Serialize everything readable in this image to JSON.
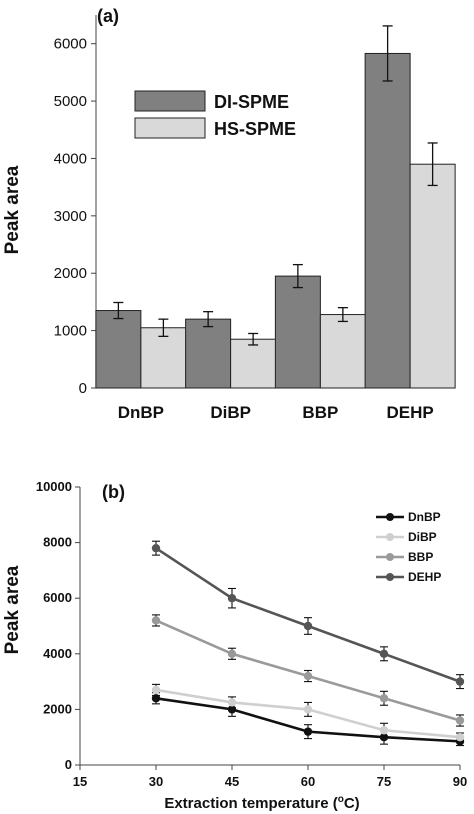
{
  "chart_data": [
    {
      "type": "bar",
      "panel_label": "(a)",
      "ylabel": "Peak area",
      "categories": [
        "DnBP",
        "DiBP",
        "BBP",
        "DEHP"
      ],
      "ylim": [
        0,
        6000
      ],
      "yticks": [
        0,
        1000,
        2000,
        3000,
        4000,
        5000,
        6000
      ],
      "legend_position": "upper-left",
      "series": [
        {
          "name": "DI-SPME",
          "color": "#808080",
          "values": [
            1350,
            1200,
            1950,
            5830
          ],
          "errors": [
            140,
            130,
            200,
            480
          ]
        },
        {
          "name": "HS-SPME",
          "color": "#d9d9d9",
          "values": [
            1050,
            850,
            1280,
            3900
          ],
          "errors": [
            150,
            100,
            120,
            370
          ]
        }
      ]
    },
    {
      "type": "line",
      "panel_label": "(b)",
      "ylabel": "Peak area",
      "xlabel_main": "Extraction temperature (",
      "xlabel_sup": "o",
      "xlabel_end": "C)",
      "x": [
        30,
        45,
        60,
        75,
        90
      ],
      "xlim": [
        15,
        90
      ],
      "xticks": [
        15,
        30,
        45,
        60,
        75,
        90
      ],
      "ylim": [
        0,
        10000
      ],
      "yticks": [
        0,
        2000,
        4000,
        6000,
        8000,
        10000
      ],
      "legend_position": "upper-right",
      "series": [
        {
          "name": "DnBP",
          "color": "#111111",
          "values": [
            2400,
            2000,
            1200,
            1000,
            850
          ],
          "errors": [
            200,
            250,
            250,
            250,
            150
          ]
        },
        {
          "name": "DiBP",
          "color": "#cfcfcf",
          "values": [
            2700,
            2250,
            2000,
            1250,
            1000
          ],
          "errors": [
            200,
            200,
            250,
            250,
            150
          ]
        },
        {
          "name": "BBP",
          "color": "#9a9a9a",
          "values": [
            5200,
            4000,
            3200,
            2400,
            1600
          ],
          "errors": [
            200,
            200,
            200,
            250,
            200
          ]
        },
        {
          "name": "DEHP",
          "color": "#555555",
          "values": [
            7800,
            6000,
            5000,
            4000,
            3000
          ],
          "errors": [
            250,
            350,
            300,
            250,
            250
          ]
        }
      ]
    }
  ]
}
